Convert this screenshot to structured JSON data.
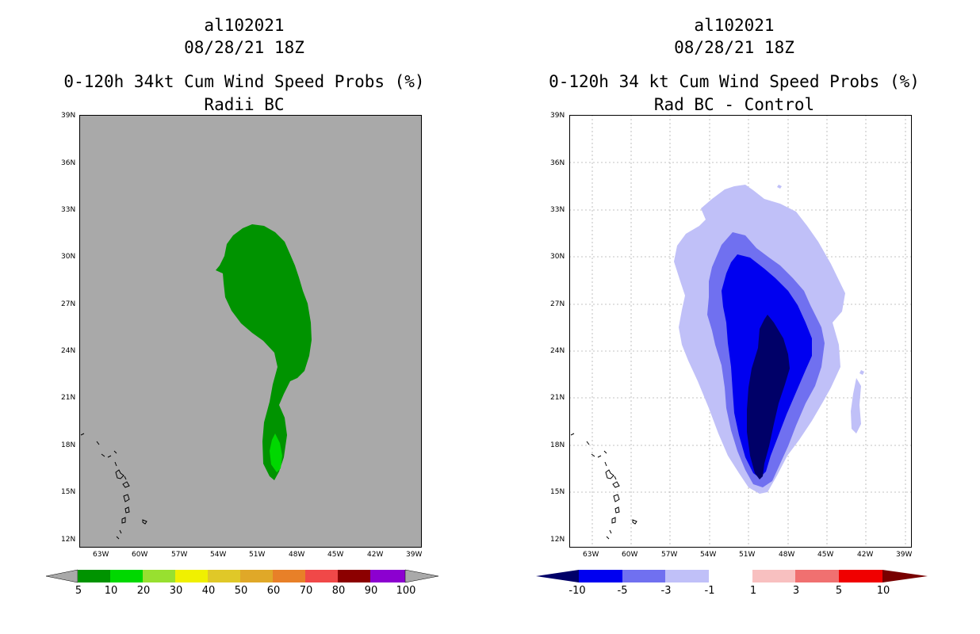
{
  "left_panel": {
    "storm_id": "al102021",
    "datetime": "08/28/21 18Z",
    "title": "0-120h 34kt Cum Wind Speed Probs (%)",
    "subtitle": "Radii BC",
    "background_color": "#a9a9a9",
    "lat_labels": [
      "39N",
      "36N",
      "33N",
      "30N",
      "27N",
      "24N",
      "21N",
      "18N",
      "15N",
      "12N"
    ],
    "lon_labels": [
      "63W",
      "60W",
      "57W",
      "54W",
      "51W",
      "48W",
      "45W",
      "42W",
      "39W"
    ],
    "colorbar": {
      "labels": [
        "5",
        "10",
        "20",
        "30",
        "40",
        "50",
        "60",
        "70",
        "80",
        "90",
        "100"
      ],
      "colors": [
        "#009300",
        "#00d800",
        "#98e030",
        "#f0f000",
        "#e0c828",
        "#e0a828",
        "#e88028",
        "#f04848",
        "#8c0000",
        "#8c00d0"
      ],
      "end_color": "#a9a9a9"
    }
  },
  "right_panel": {
    "storm_id": "al102021",
    "datetime": "08/28/21 18Z",
    "title": "0-120h 34 kt Cum Wind Speed Probs (%)",
    "subtitle": "Rad BC - Control",
    "background_color": "#ffffff",
    "lat_labels": [
      "39N",
      "36N",
      "33N",
      "30N",
      "27N",
      "24N",
      "21N",
      "18N",
      "15N",
      "12N"
    ],
    "lon_labels": [
      "63W",
      "60W",
      "57W",
      "54W",
      "51W",
      "48W",
      "45W",
      "42W",
      "39W"
    ],
    "colorbar": {
      "labels": [
        "-10",
        "-5",
        "-3",
        "-1",
        "1",
        "3",
        "5",
        "10"
      ],
      "colors": [
        "#0000f0",
        "#7070f0",
        "#c0c0f8",
        "#ffffff",
        "#f8c0c0",
        "#f07070",
        "#f00000"
      ],
      "low_end_color": "#000068",
      "high_end_color": "#780000"
    }
  }
}
